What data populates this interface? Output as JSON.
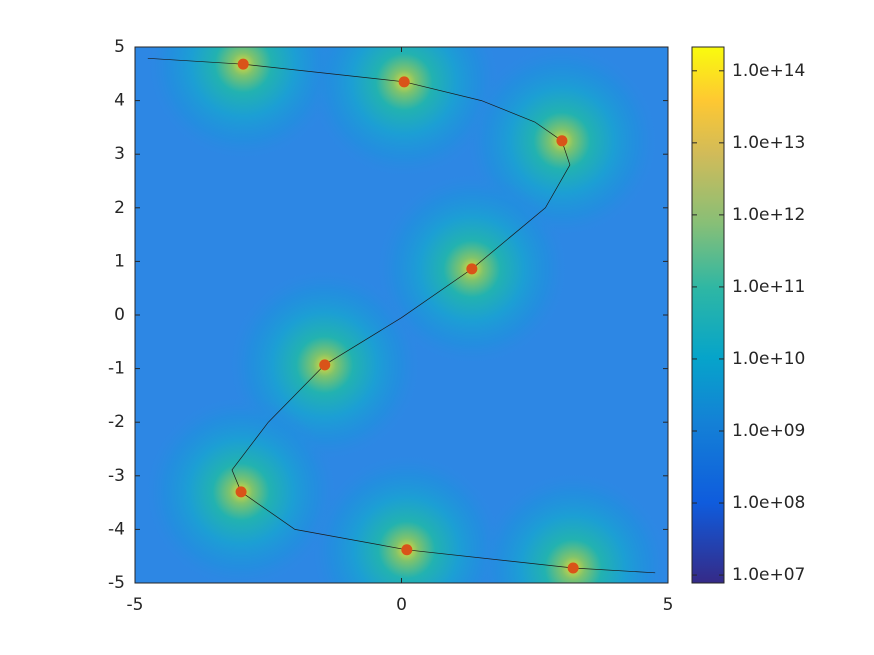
{
  "chart_data": {
    "type": "contour",
    "xlim": [
      -5,
      5
    ],
    "ylim": [
      -5,
      5
    ],
    "xticks": [
      -5,
      0,
      5
    ],
    "yticks": [
      -5,
      -4,
      -3,
      -2,
      -1,
      0,
      1,
      2,
      3,
      4,
      5
    ],
    "curve": {
      "color": "#1a1a1a",
      "x": [
        -4.76,
        -2.97,
        0.05,
        1.5,
        2.5,
        3.01,
        3.16,
        2.7,
        1.32,
        0,
        -1.44,
        -2.5,
        -3.18,
        -3.01,
        -2,
        0.1,
        3.22,
        4.76
      ],
      "y": [
        4.79,
        4.68,
        4.35,
        4.0,
        3.6,
        3.25,
        2.8,
        2.0,
        0.86,
        -0.05,
        -0.93,
        -2.0,
        -2.89,
        -3.3,
        -4.0,
        -4.38,
        -4.72,
        -4.81
      ]
    },
    "points": {
      "color": "#d95319",
      "x": [
        -2.97,
        0.05,
        3.01,
        1.32,
        -1.44,
        -3.01,
        0.1,
        3.22
      ],
      "y": [
        4.68,
        4.35,
        3.25,
        0.86,
        -0.93,
        -3.3,
        -4.38,
        -4.72
      ]
    },
    "colorbar": {
      "scale": "log",
      "lim": [
        7760000,
        214000000000000
      ],
      "ticks": [
        {
          "value": 10000000,
          "label": "1.0e+07"
        },
        {
          "value": 100000000,
          "label": "1.0e+08"
        },
        {
          "value": 1000000000,
          "label": "1.0e+09"
        },
        {
          "value": 10000000000,
          "label": "1.0e+10"
        },
        {
          "value": 100000000000,
          "label": "1.0e+11"
        },
        {
          "value": 1000000000000,
          "label": "1.0e+12"
        },
        {
          "value": 10000000000000,
          "label": "1.0e+13"
        },
        {
          "value": 100000000000000,
          "label": "1.0e+14"
        }
      ]
    }
  }
}
